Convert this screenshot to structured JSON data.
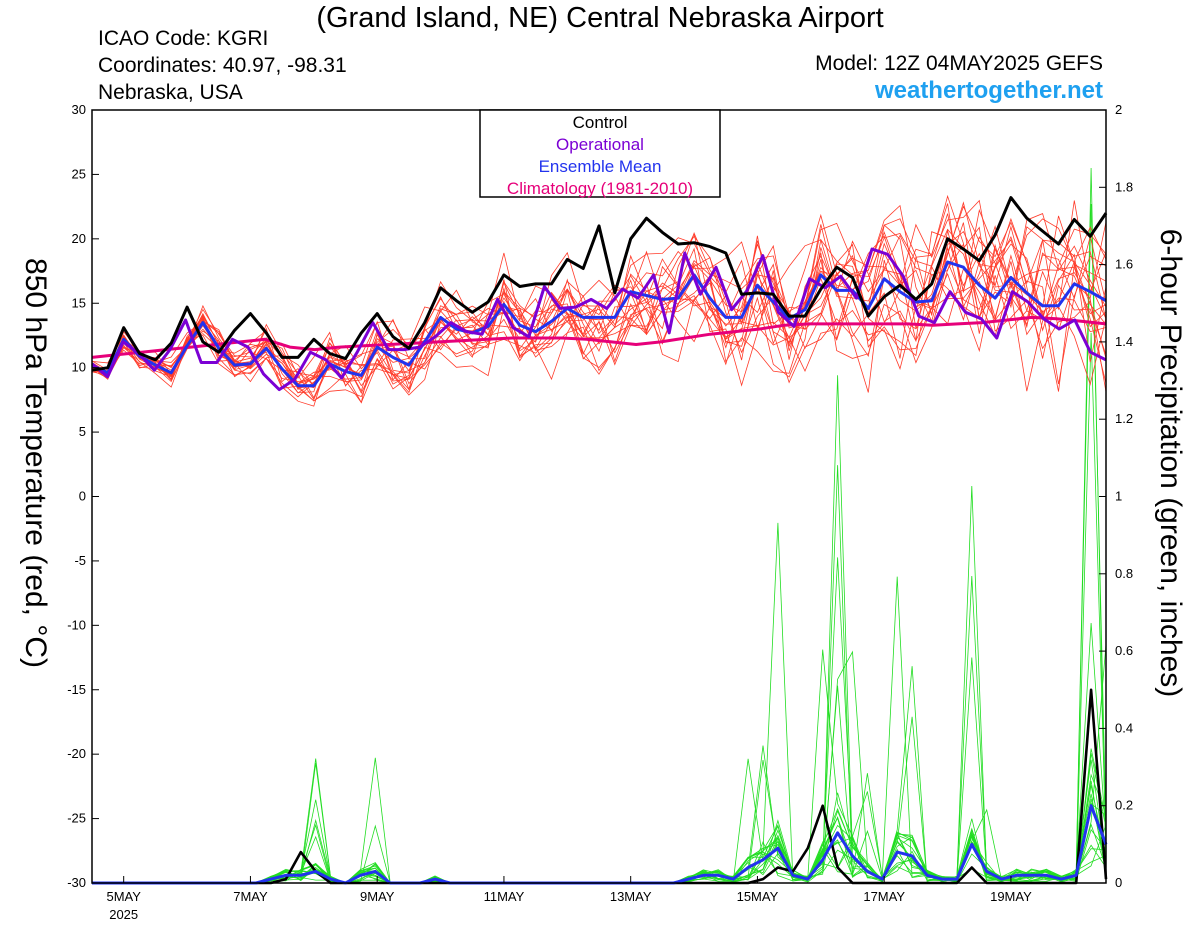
{
  "header": {
    "title": "(Grand Island, NE) Central Nebraska Airport",
    "icao": "ICAO Code: KGRI",
    "coordinates": "Coordinates: 40.97, -98.31",
    "region": "Nebraska, USA",
    "model": "Model: 12Z 04MAY2025 GEFS",
    "site": "weathertogether.net"
  },
  "colors": {
    "control": "#000000",
    "operational": "#7b00d4",
    "ensemble_mean": "#2233ee",
    "climatology": "#e6007a",
    "members_temp": "#ff3b2a",
    "members_precip": "#22dd22",
    "site": "#1ea0f0"
  },
  "chart_data": {
    "type": "line",
    "xlabel": "",
    "ylabel": "850 hPa Temperature (red, °C)",
    "ylabel_right": "6-hour Precipitation (green, inches)",
    "ylim": [
      -30,
      30
    ],
    "ylim_right": [
      0,
      2
    ],
    "yticks": [
      "30",
      "25",
      "20",
      "15",
      "10",
      "5",
      "0",
      "-5",
      "-10",
      "-15",
      "-20",
      "-25",
      "-30"
    ],
    "yticks_right": [
      "2",
      "1.8",
      "1.6",
      "1.4",
      "1.2",
      "1",
      "0.8",
      "0.6",
      "0.4",
      "0.2",
      "0"
    ],
    "x_hours_start": 0,
    "x_hours_end": 384,
    "x_ticks": [
      {
        "label": "5MAY",
        "sub": "2025",
        "h": 12
      },
      {
        "label": "7MAY",
        "sub": "",
        "h": 60
      },
      {
        "label": "9MAY",
        "sub": "",
        "h": 108
      },
      {
        "label": "11MAY",
        "sub": "",
        "h": 156
      },
      {
        "label": "13MAY",
        "sub": "",
        "h": 204
      },
      {
        "label": "15MAY",
        "sub": "",
        "h": 252
      },
      {
        "label": "17MAY",
        "sub": "",
        "h": 300
      },
      {
        "label": "19MAY",
        "sub": "",
        "h": 348
      }
    ],
    "grid": false,
    "legend_position": "top-center",
    "legend": [
      "Control",
      "Operational",
      "Ensemble Mean",
      "Climatology (1981-2010)"
    ],
    "series": [
      {
        "name": "Control",
        "axis": "temp",
        "values": [
          9.8,
          10,
          13.1,
          11.1,
          10.6,
          11.9,
          14.7,
          12,
          11.2,
          12.9,
          14.2,
          12.7,
          10.8,
          10.8,
          12.2,
          11.1,
          10.7,
          12.7,
          14.2,
          12.4,
          11.5,
          13.5,
          16.2,
          15.2,
          14.3,
          15.1,
          17.2,
          16.3,
          16.5,
          16.5,
          18.4,
          17.7,
          21,
          15.8,
          20,
          21.6,
          20.5,
          19.6,
          19.7,
          19.4,
          18.9,
          15.7,
          15.8,
          15.7,
          14,
          14,
          16.1,
          17.8,
          17,
          14,
          15.5,
          16.4,
          15.3,
          16.5,
          20,
          19.2,
          18.3,
          20.3,
          23.2,
          21.6,
          20.6,
          19.6,
          21.5,
          20.2,
          22
        ]
      },
      {
        "name": "Operational",
        "axis": "temp",
        "values": [
          10.3,
          9.3,
          12,
          11.1,
          9.8,
          11.4,
          13.7,
          10.4,
          10.4,
          12.2,
          11.6,
          9.5,
          8.3,
          9.1,
          11.2,
          10.6,
          9.2,
          11.2,
          13.5,
          11.4,
          11.4,
          11.6,
          12.4,
          13.5,
          12.8,
          12.6,
          15.3,
          13.1,
          12.4,
          16.3,
          14.6,
          14.7,
          15.3,
          14.6,
          16.1,
          15.4,
          17.2,
          12.7,
          18.9,
          15.7,
          17.8,
          14.5,
          16,
          18.7,
          14.3,
          13.2,
          16.9,
          16.2,
          17.1,
          15.4,
          19.2,
          18.8,
          17.1,
          14,
          13.5,
          15.9,
          14.3,
          13.8,
          12.3,
          15.9,
          15.1,
          13.8,
          13,
          13.7,
          11.2,
          10.6
        ]
      },
      {
        "name": "Ensemble Mean",
        "axis": "temp",
        "values": [
          10.2,
          9.6,
          12.2,
          10.9,
          10.2,
          9.6,
          11.7,
          13.5,
          11.5,
          10.2,
          10.3,
          11.5,
          9.9,
          8.6,
          8.6,
          10.3,
          9.7,
          9.4,
          11.6,
          10.8,
          10.2,
          12,
          13.9,
          13,
          12.7,
          13.2,
          14.9,
          13.3,
          12.8,
          13.6,
          14.6,
          13.9,
          13.9,
          13.9,
          15.9,
          15.6,
          15.3,
          15.4,
          17.2,
          15.4,
          13.9,
          13.9,
          16.4,
          15.1,
          13.8,
          14.5,
          17.2,
          16,
          16,
          14.6,
          16.9,
          15.9,
          15.1,
          15.2,
          18.2,
          17.8,
          16.4,
          15.4,
          17,
          15.8,
          14.8,
          14.8,
          16.5,
          15.9,
          15.2
        ]
      },
      {
        "name": "Climatology (1981-2010)",
        "axis": "temp",
        "values": [
          10.8,
          11,
          11.2,
          11.4,
          11.6,
          11.8,
          12,
          12.2,
          11.6,
          11.4,
          11.6,
          11.7,
          11.8,
          11.9,
          12,
          12.1,
          12.2,
          12.3,
          12.3,
          12.3,
          12.2,
          12,
          11.8,
          12,
          12.3,
          12.6,
          12.8,
          13,
          13.3,
          13.4,
          13.4,
          13.4,
          13.4,
          13.4,
          13.3,
          13.4,
          13.5,
          13.7,
          13.9,
          13.8,
          13.6,
          13.4
        ]
      },
      {
        "name": "Control Precip",
        "axis": "precip",
        "values": [
          0,
          0,
          0,
          0,
          0,
          0,
          0,
          0,
          0,
          0,
          0,
          0,
          0,
          0.01,
          0.08,
          0.03,
          0,
          0,
          0,
          0,
          0,
          0,
          0,
          0,
          0,
          0,
          0,
          0,
          0,
          0,
          0,
          0,
          0,
          0,
          0,
          0,
          0,
          0,
          0,
          0,
          0,
          0,
          0,
          0,
          0,
          0.01,
          0.04,
          0.03,
          0.09,
          0.2,
          0.04,
          0,
          0,
          0,
          0,
          0,
          0,
          0,
          0,
          0.04,
          0,
          0,
          0,
          0,
          0,
          0,
          0,
          0.5,
          0.01
        ]
      },
      {
        "name": "Ensemble Mean Precip",
        "axis": "precip",
        "values": [
          0,
          0,
          0,
          0,
          0,
          0,
          0,
          0,
          0,
          0,
          0,
          0,
          0.01,
          0.02,
          0.02,
          0.03,
          0.01,
          0,
          0.02,
          0.03,
          0,
          0,
          0,
          0.01,
          0,
          0,
          0,
          0,
          0,
          0,
          0,
          0,
          0,
          0,
          0,
          0,
          0,
          0,
          0,
          0,
          0.01,
          0.02,
          0.02,
          0.01,
          0.04,
          0.06,
          0.09,
          0.02,
          0.01,
          0.06,
          0.13,
          0.07,
          0.03,
          0.01,
          0.08,
          0.07,
          0.02,
          0.01,
          0.01,
          0.1,
          0.03,
          0.01,
          0.02,
          0.02,
          0.02,
          0.01,
          0.02,
          0.2,
          0.1
        ]
      },
      {
        "name": "Members",
        "axis": "temp",
        "values": [],
        "note": "20 perturbation members"
      }
    ]
  }
}
